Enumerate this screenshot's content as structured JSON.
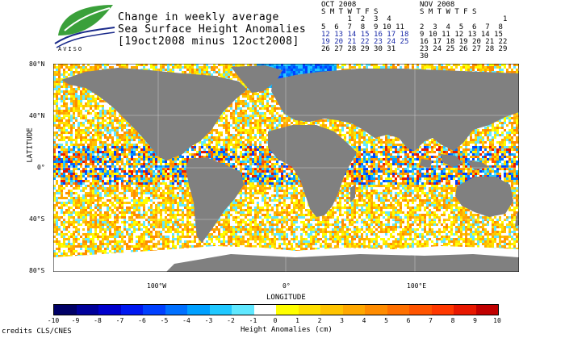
{
  "title": {
    "line1": "Change in weekly average",
    "line2": "Sea Surface Height Anomalies",
    "line3": "[19oct2008 minus 12oct2008]"
  },
  "logo": {
    "text": "AVISO",
    "icon": "leaf-logo-icon"
  },
  "calendars": [
    {
      "month": "OCT 2008",
      "weekdays": "S M T W T F S",
      "rows": [
        "      1  2  3  4",
        "5  6  7  8  9 10 11",
        "12 13 14 15 16 17 18",
        "19 20 21 22 23 24 25",
        "26 27 28 29 30 31"
      ],
      "highlight_rows": [
        2,
        3
      ]
    },
    {
      "month": "NOV 2008",
      "weekdays": "S M T W T F S",
      "rows": [
        "                   1",
        "2  3  4  5  6  7  8",
        "9 10 11 12 13 14 15",
        "16 17 18 19 20 21 22",
        "23 24 25 26 27 28 29",
        "30"
      ],
      "highlight_rows": []
    }
  ],
  "axes": {
    "y_title": "LATITUDE",
    "x_title": "LONGITUDE",
    "y_ticks": [
      "80°N",
      "40°N",
      "0°",
      "40°S",
      "80°S"
    ],
    "x_ticks": [
      "100°W",
      "0°",
      "100°E"
    ]
  },
  "colorbar": {
    "title": "Height Anomalies (cm)",
    "labels": [
      "-10",
      "-9",
      "-8",
      "-7",
      "-6",
      "-5",
      "-4",
      "-3",
      "-2",
      "-1",
      "0",
      "1",
      "2",
      "3",
      "4",
      "5",
      "6",
      "7",
      "8",
      "9",
      "10"
    ],
    "colors": [
      "#000066",
      "#00009a",
      "#0000cc",
      "#0018f0",
      "#0040ff",
      "#0070ff",
      "#00a0ff",
      "#20c8ff",
      "#60e8ff",
      "#ffffff",
      "#ffff00",
      "#ffe000",
      "#ffc400",
      "#ffa800",
      "#ff8c00",
      "#ff7000",
      "#ff5400",
      "#ff3800",
      "#e81800",
      "#c00000"
    ]
  },
  "credits": "credits CLS/CNES",
  "map_colors": {
    "land": "#808080",
    "ice": "#ffffff",
    "grid": "#ffffff"
  }
}
